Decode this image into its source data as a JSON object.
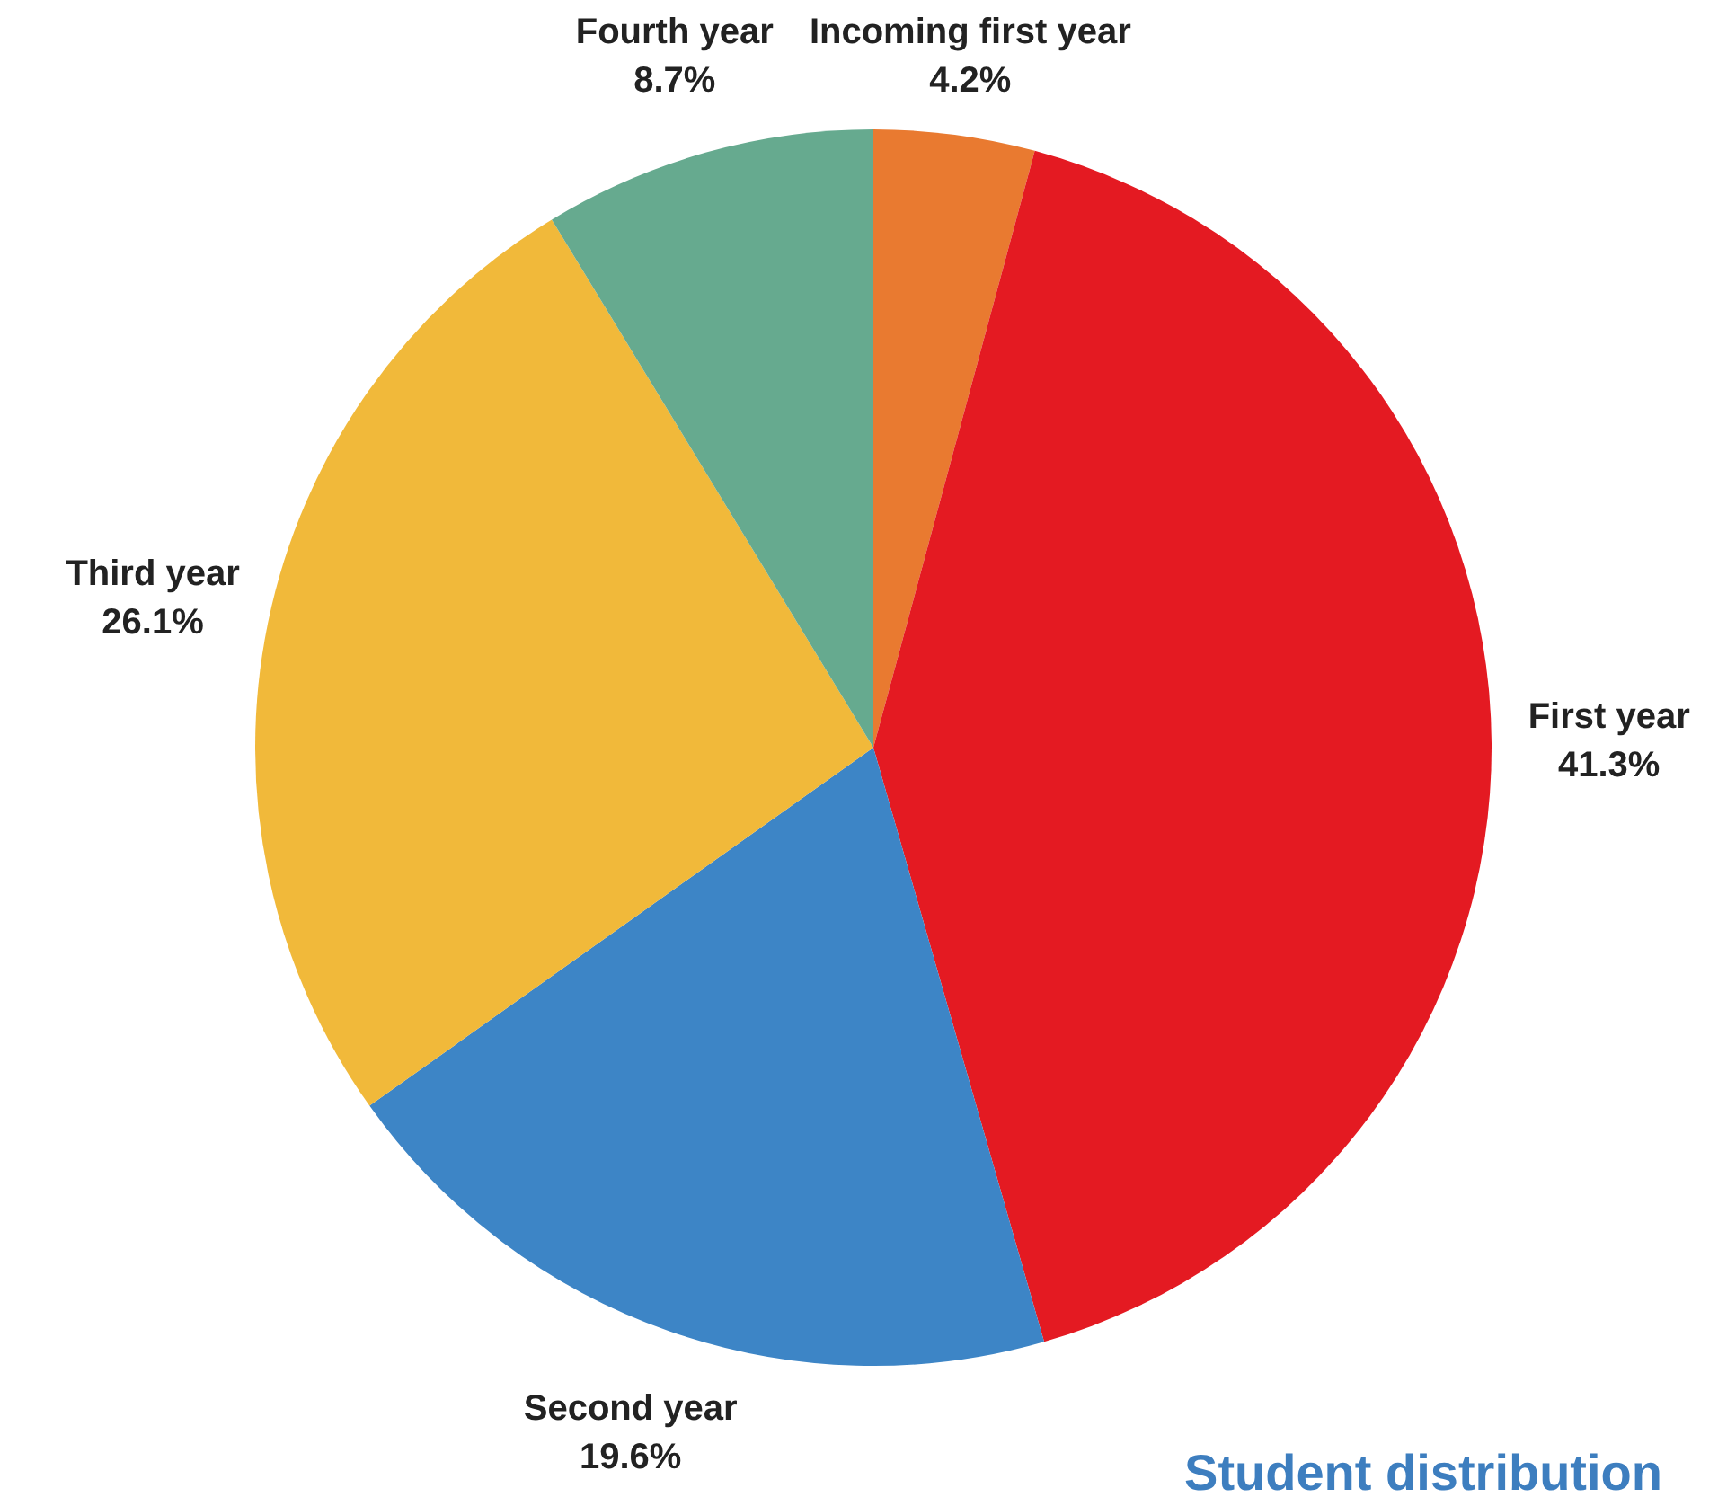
{
  "chart_data": {
    "type": "pie",
    "title": "Student distribution",
    "categories": [
      "Incoming first year",
      "First year",
      "Second year",
      "Third year",
      "Fourth year"
    ],
    "values": [
      4.2,
      41.3,
      19.6,
      26.1,
      8.7
    ],
    "colors": [
      "#e97a30",
      "#e41a22",
      "#3d85c6",
      "#f1b93a",
      "#66aa8f"
    ],
    "value_labels": [
      "4.2%",
      "41.3%",
      "19.6%",
      "26.1%",
      "8.7%"
    ],
    "legend": false
  }
}
